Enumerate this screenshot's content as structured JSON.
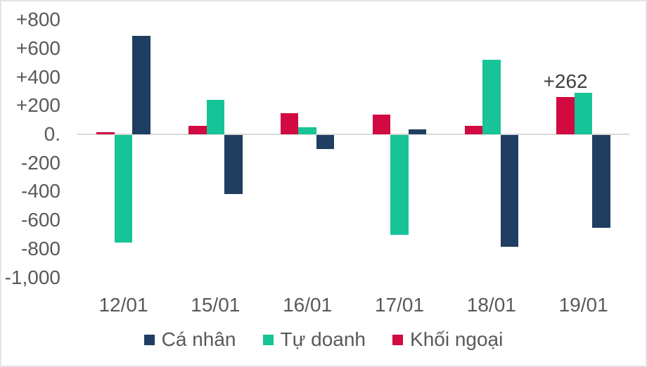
{
  "chart_data": {
    "type": "bar",
    "title": "",
    "xlabel": "",
    "ylabel": "",
    "categories": [
      "12/01",
      "15/01",
      "16/01",
      "17/01",
      "18/01",
      "19/01"
    ],
    "series": [
      {
        "key": "khoi-ngoai",
        "name": "Khối ngoại",
        "color": "#D10A41",
        "values": [
          15,
          60,
          145,
          140,
          60,
          262
        ]
      },
      {
        "key": "tu-doanh",
        "name": "Tự doanh",
        "color": "#16C497",
        "values": [
          -750,
          240,
          50,
          -700,
          520,
          290
        ]
      },
      {
        "key": "ca-nhan",
        "name": "Cá nhân",
        "color": "#1F3E61",
        "values": [
          690,
          -415,
          -100,
          35,
          -780,
          -650
        ]
      }
    ],
    "legend": [
      {
        "label": "Cá nhân",
        "color": "#1F3E61"
      },
      {
        "label": "Tự doanh",
        "color": "#16C497"
      },
      {
        "label": "Khối ngoại",
        "color": "#D10A41"
      }
    ],
    "legend_position": "bottom",
    "grid": false,
    "ylim": [
      -1000,
      800
    ],
    "y_ticks": [
      {
        "label": "+800",
        "value": 800
      },
      {
        "label": "+600",
        "value": 600
      },
      {
        "label": "+400",
        "value": 400
      },
      {
        "label": "+200",
        "value": 200
      },
      {
        "label": "0.",
        "value": 0
      },
      {
        "label": "-200",
        "value": -200
      },
      {
        "label": "-400",
        "value": -400
      },
      {
        "label": "-600",
        "value": -600
      },
      {
        "label": "-800",
        "value": -800
      },
      {
        "label": "-1,000",
        "value": -1000
      }
    ],
    "annotations": [
      {
        "text": "+262",
        "category": "19/01",
        "series": "Khối ngoại"
      }
    ]
  },
  "colors": {
    "background": "#FFFFFF",
    "border": "#E5E5E5",
    "zero_axis_line": "#D9D9D9",
    "tick_text": "#595959",
    "annotation_text": "#3F3F3F"
  }
}
